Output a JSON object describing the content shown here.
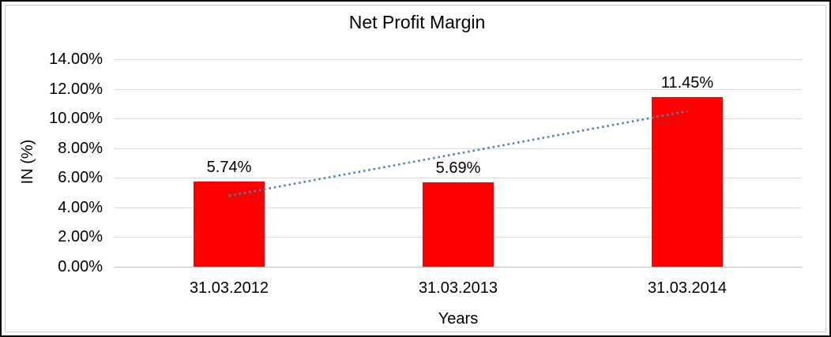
{
  "chart_data": {
    "type": "bar",
    "title": "Net Profit Margin",
    "xlabel": "Years",
    "ylabel": "IN (%)",
    "categories": [
      "31.03.2012",
      "31.03.2013",
      "31.03.2014"
    ],
    "values": [
      5.74,
      5.69,
      11.45
    ],
    "data_labels": [
      "5.74%",
      "5.69%",
      "11.45%"
    ],
    "ylim": [
      0,
      14
    ],
    "ytick_step": 2,
    "ytick_labels": [
      "0.00%",
      "2.00%",
      "4.00%",
      "6.00%",
      "8.00%",
      "10.00%",
      "12.00%",
      "14.00%"
    ],
    "grid": true,
    "legend": "none",
    "bar_color": "#FF0000",
    "gridline_color": "#D9D9D9",
    "axis_line_color": "#BFBFBF",
    "text_color": "#000000",
    "trendline": {
      "type": "linear",
      "style": "dotted",
      "color": "#4F81BD",
      "start_value": 4.77,
      "end_value": 10.48
    }
  }
}
